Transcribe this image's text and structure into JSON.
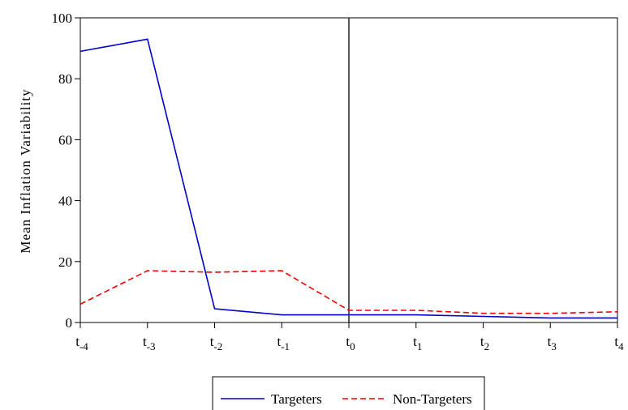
{
  "chart_data": {
    "type": "line",
    "title": "",
    "xlabel": "",
    "ylabel": "Mean Inflation Variability",
    "ylim": [
      0,
      100
    ],
    "yticks": [
      0,
      20,
      40,
      60,
      80,
      100
    ],
    "categories": [
      {
        "base": "t",
        "sub": "-4"
      },
      {
        "base": "t",
        "sub": "-3"
      },
      {
        "base": "t",
        "sub": "-2"
      },
      {
        "base": "t",
        "sub": "-1"
      },
      {
        "base": "t",
        "sub": "0"
      },
      {
        "base": "t",
        "sub": "1"
      },
      {
        "base": "t",
        "sub": "2"
      },
      {
        "base": "t",
        "sub": "3"
      },
      {
        "base": "t",
        "sub": "4"
      }
    ],
    "reference_line": {
      "at_index": 4
    },
    "grid": false,
    "legend_position": "bottom",
    "series": [
      {
        "name": "Targeters",
        "color": "#0000cc",
        "dash": "solid",
        "values": [
          89,
          93,
          4.5,
          2.5,
          2.5,
          2.5,
          2,
          1.5,
          1.5
        ]
      },
      {
        "name": "Non-Targeters",
        "color": "#ee0000",
        "dash": "dashed",
        "values": [
          6,
          17,
          16.5,
          17,
          4,
          4,
          3,
          3,
          3.5
        ]
      }
    ]
  }
}
